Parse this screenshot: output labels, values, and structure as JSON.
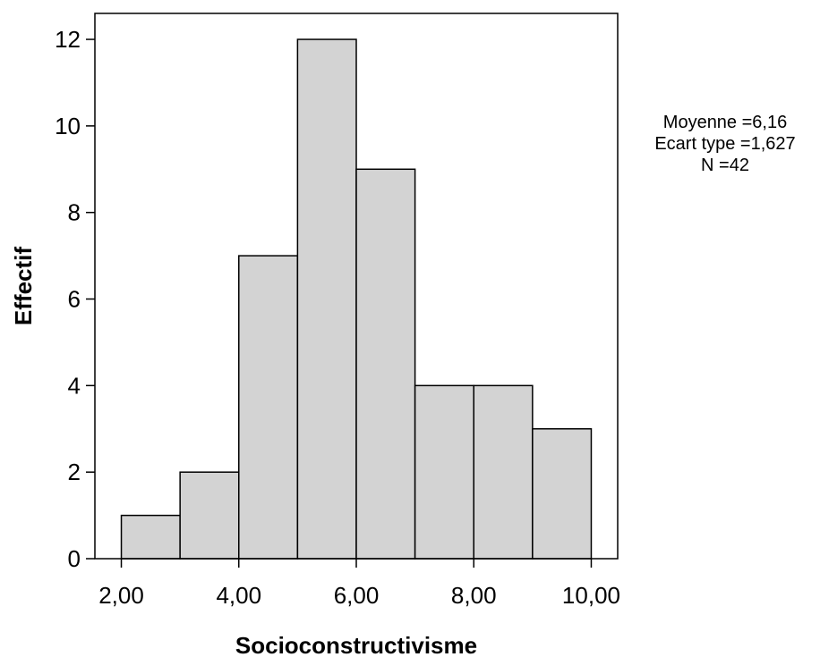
{
  "chart_data": {
    "type": "bar",
    "subtype": "histogram",
    "xlabel": "Socioconstructivisme",
    "ylabel": "Effectif",
    "bins": [
      {
        "start": 2,
        "end": 3,
        "value": 1
      },
      {
        "start": 3,
        "end": 4,
        "value": 2
      },
      {
        "start": 4,
        "end": 5,
        "value": 7
      },
      {
        "start": 5,
        "end": 6,
        "value": 12
      },
      {
        "start": 6,
        "end": 7,
        "value": 9
      },
      {
        "start": 7,
        "end": 8,
        "value": 4
      },
      {
        "start": 8,
        "end": 9,
        "value": 4
      },
      {
        "start": 9,
        "end": 10,
        "value": 3
      }
    ],
    "xlim": [
      1.55,
      10.45
    ],
    "ylim": [
      0,
      12.6
    ],
    "x_ticks": [
      2,
      4,
      6,
      8,
      10
    ],
    "x_tick_labels": [
      "2,00",
      "4,00",
      "6,00",
      "8,00",
      "10,00"
    ],
    "y_ticks": [
      0,
      2,
      4,
      6,
      8,
      10,
      12
    ],
    "y_tick_labels": [
      "0",
      "2",
      "4",
      "6",
      "8",
      "10",
      "12"
    ],
    "grid": false,
    "bar_color": "#d3d3d3",
    "edge_color": "#000000"
  },
  "stats": {
    "mean": "Moyenne =6,16",
    "std": "Ecart type =1,627",
    "n": "N =42"
  }
}
